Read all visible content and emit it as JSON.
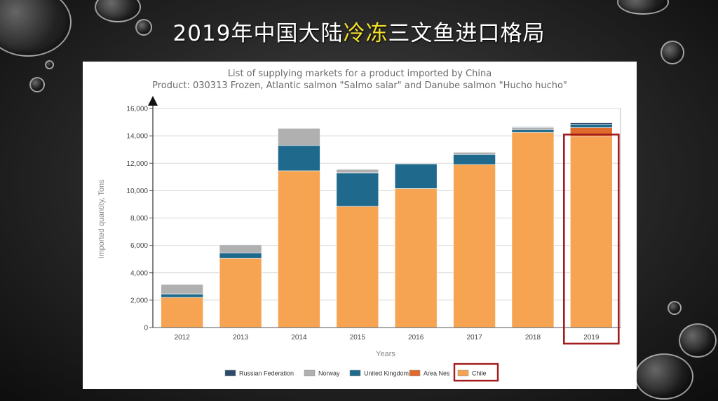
{
  "slide": {
    "title_part1": "2019年中国大陆",
    "title_highlight": "冷冻",
    "title_part2": "三文鱼进口格局"
  },
  "colors": {
    "Russian Federation": "#2c4a6b",
    "Norway": "#b0b0b0",
    "United Kingdom": "#1f6a8c",
    "Area Nes": "#e06a2c",
    "Chile": "#f7a452",
    "highlight_box": "#a11c1c"
  },
  "chart_data": {
    "type": "bar",
    "stacked": true,
    "title": "List of supplying markets for a product imported by China",
    "subtitle": "Product: 030313 Frozen, Atlantic salmon \"Salmo salar\" and Danube salmon \"Hucho hucho\"",
    "xlabel": "Years",
    "ylabel": "Imported quantity, Tons",
    "ylim": [
      0,
      16000
    ],
    "yticks": [
      "0",
      "2,000",
      "4,000",
      "6,000",
      "8,000",
      "10,000",
      "12,000",
      "14,000",
      "16,000"
    ],
    "categories": [
      "2012",
      "2013",
      "2014",
      "2015",
      "2016",
      "2017",
      "2018",
      "2019"
    ],
    "series": [
      {
        "name": "Chile",
        "values": [
          2200,
          5050,
          11450,
          8850,
          10150,
          11900,
          14250,
          13950
        ]
      },
      {
        "name": "Area Nes",
        "values": [
          0,
          0,
          0,
          0,
          0,
          0,
          0,
          650
        ]
      },
      {
        "name": "United Kingdom",
        "values": [
          250,
          400,
          1850,
          2450,
          1800,
          750,
          200,
          250
        ]
      },
      {
        "name": "Norway",
        "values": [
          700,
          550,
          1250,
          250,
          0,
          150,
          150,
          0
        ]
      },
      {
        "name": "Russian Federation",
        "values": [
          0,
          50,
          0,
          0,
          0,
          0,
          50,
          100
        ]
      }
    ],
    "legend_order": [
      "Russian Federation",
      "Norway",
      "United Kingdom",
      "Area Nes",
      "Chile"
    ],
    "legend_position": "bottom",
    "grid": true,
    "highlighted_category": "2019",
    "highlighted_legend": "Chile"
  }
}
